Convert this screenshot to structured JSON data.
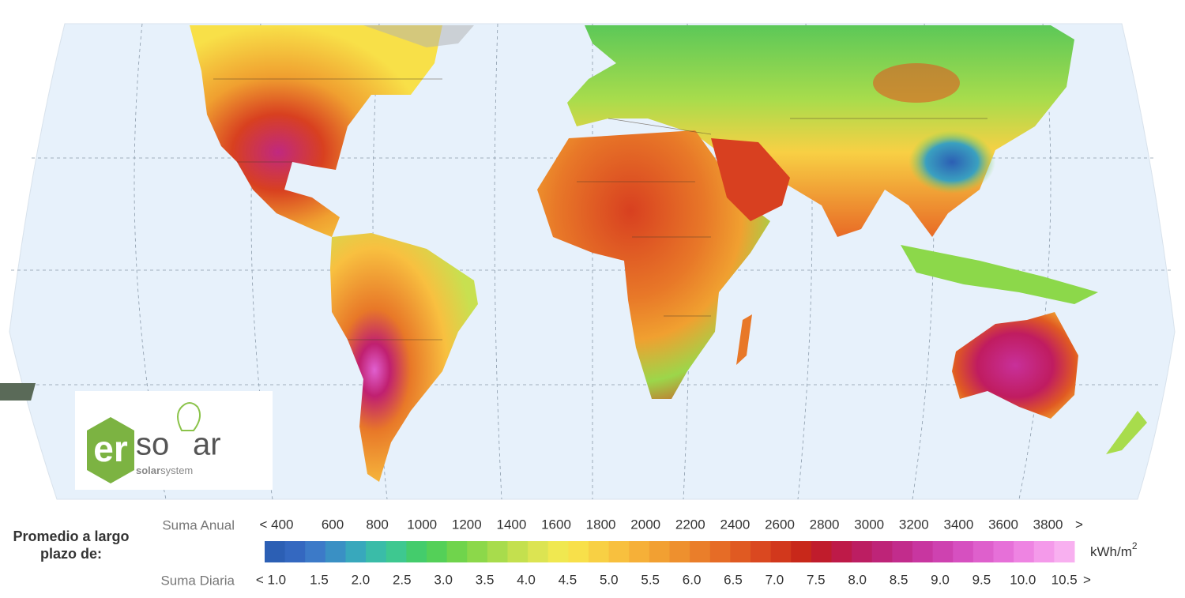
{
  "logo": {
    "mark": "er",
    "word_start": "so",
    "word_end": "ar",
    "tagline_bold": "solar",
    "tagline": "system"
  },
  "legend": {
    "title": "Promedio a largo plazo de:",
    "annual_label": "Suma Anual",
    "annual_ticks": [
      "< 400",
      "600",
      "800",
      "1000",
      "1200",
      "1400",
      "1600",
      "1800",
      "2000",
      "2200",
      "2400",
      "2600",
      "2800",
      "3000",
      "3200",
      "3400",
      "3600",
      "3800"
    ],
    "annual_more": ">",
    "daily_label": "Suma Diaria",
    "daily_ticks": [
      "< 1.0",
      "1.5",
      "2.0",
      "2.5",
      "3.0",
      "3.5",
      "4.0",
      "4.5",
      "5.0",
      "5.5",
      "6.0",
      "6.5",
      "7.0",
      "7.5",
      "8.0",
      "8.5",
      "9.0",
      "9.5",
      "10.0",
      "10.5"
    ],
    "daily_more": ">",
    "unit": "kWh/m",
    "unit_exponent": "2",
    "colors": [
      "#2c5fb4",
      "#3468c0",
      "#3c7ac8",
      "#3a90c4",
      "#38a8bc",
      "#3abca8",
      "#3ec890",
      "#44cc6c",
      "#54d058",
      "#70d44c",
      "#8cd84a",
      "#a8dc4c",
      "#c4e04e",
      "#dce452",
      "#f0e850",
      "#f8e04a",
      "#f8d044",
      "#f8c03e",
      "#f6b038",
      "#f2a032",
      "#ee902e",
      "#ea7e2a",
      "#e66c26",
      "#e05a22",
      "#da4820",
      "#d2381c",
      "#c8281a",
      "#c01c2c",
      "#be1a48",
      "#bc1e62",
      "#be2478",
      "#c22c8c",
      "#c836a0",
      "#ce42b0",
      "#d650c0",
      "#de60cc",
      "#e670d8",
      "#ee84e2",
      "#f49aea",
      "#f8b0f0"
    ]
  }
}
